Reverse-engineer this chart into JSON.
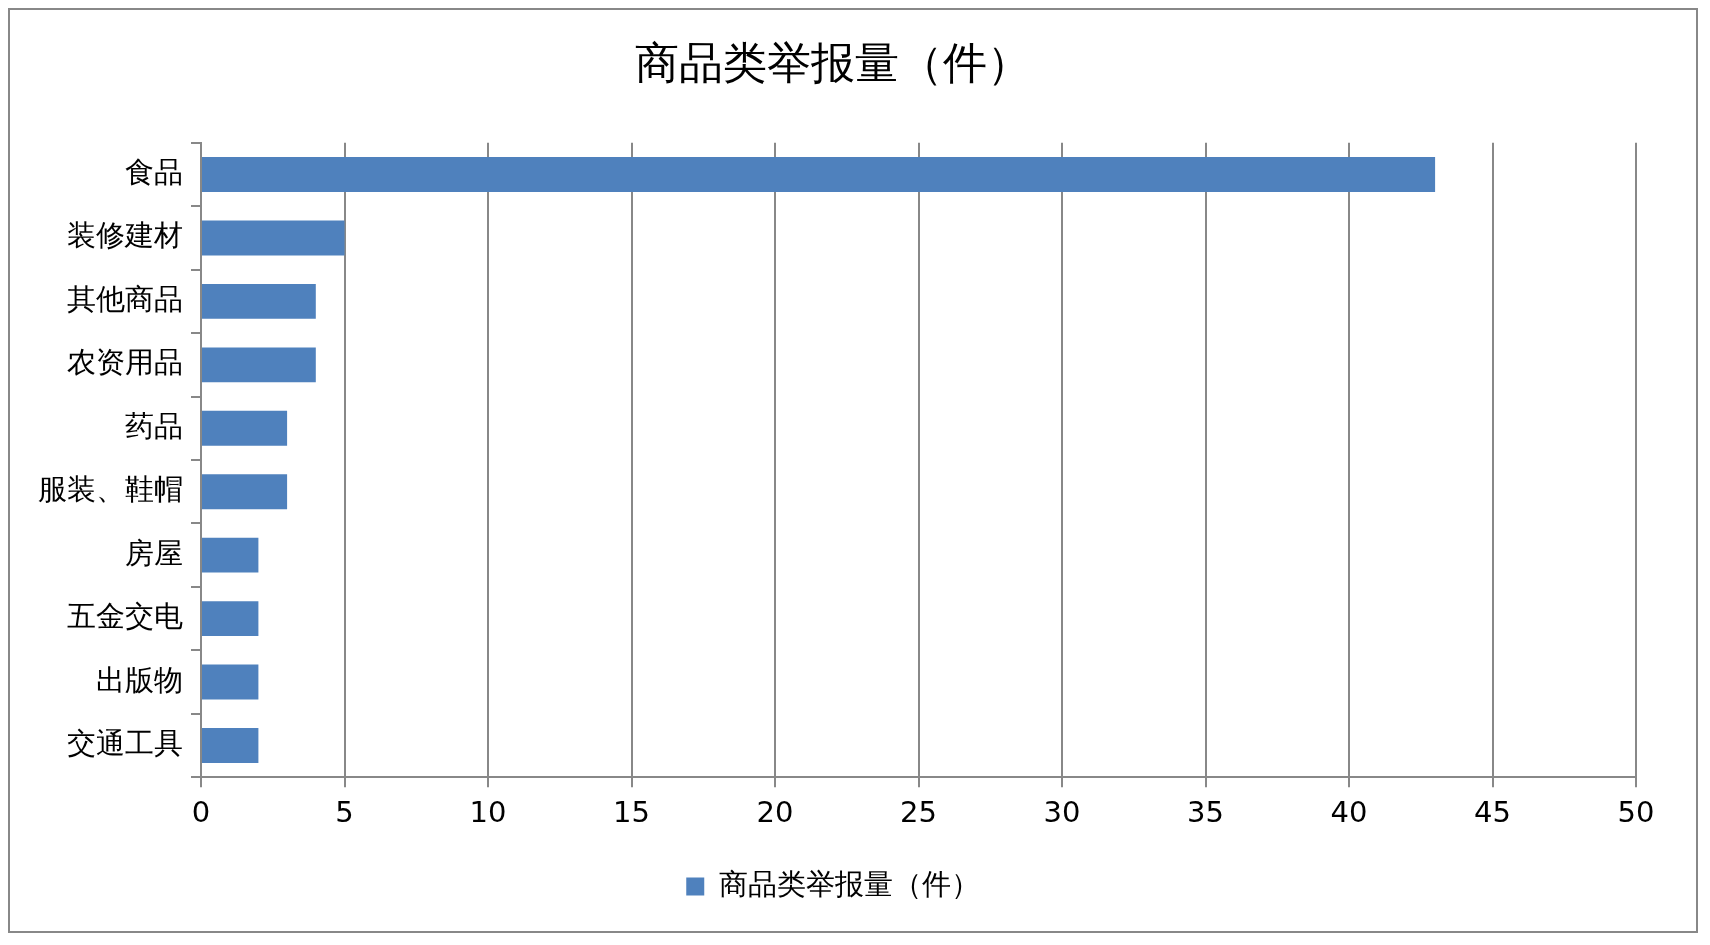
{
  "chart_data": {
    "type": "bar",
    "orientation": "horizontal",
    "title": "商品类举报量（件）",
    "categories": [
      "食品",
      "装修建材",
      "其他商品",
      "农资用品",
      "药品",
      "服装、鞋帽",
      "房屋",
      "五金交电",
      "出版物",
      "交通工具"
    ],
    "series": [
      {
        "name": "商品类举报量（件）",
        "color": "#4f81bd",
        "values": [
          43,
          5,
          4,
          4,
          3,
          3,
          2,
          2,
          2,
          2
        ]
      }
    ],
    "xlim": [
      0,
      50
    ],
    "xticks": [
      0,
      5,
      10,
      15,
      20,
      25,
      30,
      35,
      40,
      45,
      50
    ],
    "grid": "x",
    "legend": "bottom"
  }
}
